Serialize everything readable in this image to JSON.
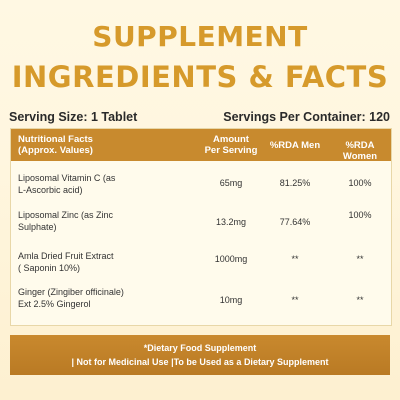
{
  "title": {
    "line1": "SUPPLEMENT",
    "line2": "INGREDIENTS & FACTS"
  },
  "serving": {
    "size": "Serving Size: 1 Tablet",
    "per_container": "Servings Per Container: 120"
  },
  "table": {
    "headers": {
      "nutritional_line1": "Nutritional Facts",
      "nutritional_line2": "(Approx. Values)",
      "amount_line1": "Amount",
      "amount_line2": "Per Serving",
      "rda_men": "%RDA Men",
      "rda_women": "%RDA Women"
    },
    "rows": [
      {
        "name_line1": "Liposomal Vitamin C (as",
        "name_line2": "L-Ascorbic acid)",
        "amount": "65mg",
        "rda_men": "81.25%",
        "rda_women": "100%"
      },
      {
        "name_line1": "Liposomal Zinc (as Zinc",
        "name_line2": "Sulphate)",
        "amount": "13.2mg",
        "rda_men": "77.64%",
        "rda_women": "100%"
      },
      {
        "name_line1": "Amla Dried Fruit Extract",
        "name_line2": "( Saponin 10%)",
        "amount": "1000mg",
        "rda_men": "**",
        "rda_women": "**"
      },
      {
        "name_line1": "Ginger (Zingiber officinale)",
        "name_line2": "Ext 2.5% Gingerol",
        "amount": "10mg",
        "rda_men": "**",
        "rda_women": "**"
      }
    ]
  },
  "footer": {
    "line1": "*Dietary Food Supplement",
    "line2": "| Not for Medicinal Use |To be Used as a Dietary Supplement"
  },
  "colors": {
    "accent": "#d69a2b",
    "header_bg": "#c88a2e"
  }
}
